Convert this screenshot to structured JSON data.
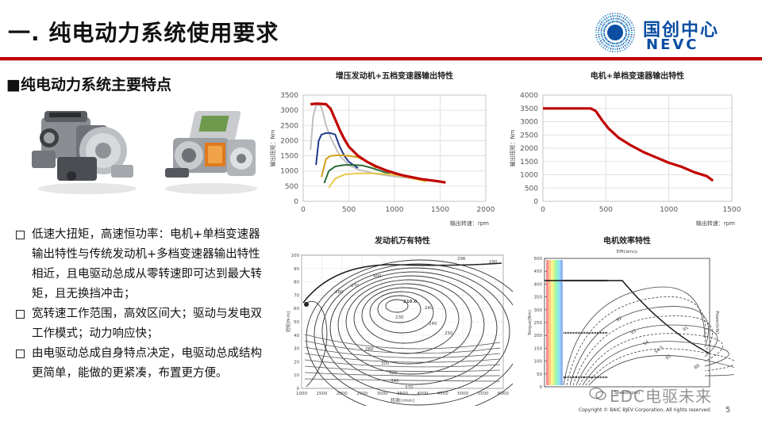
{
  "slide": {
    "title": "一. 纯电动力系统使用要求",
    "subheading": "■纯电动力系统主要特点",
    "page_number": "5",
    "copyright": "Copyright © BAIC BJEV Corporation, All rights reserved.",
    "watermark": "EDC电驱未来"
  },
  "logo": {
    "cn": "国创中心",
    "en": "NEVC",
    "color": "#0b4ea2"
  },
  "bullets": [
    "低速大扭矩，高速恒功率：电机+单档变速器输出特性与传统发动机+多档变速器输出特性相近，且电驱动总成从零转速即可达到最大转矩，且无换挡冲击；",
    "宽转速工作范围，高效区间大；驱动与发电双工作模式；动力响应快；",
    "由电驱动总成自身特点决定，电驱动总成结构更简单，能做的更紧凑，布置更方便。"
  ],
  "images": {
    "engine_left": "engine-with-multi-speed-transmission",
    "engine_right": "electric-drive-assembly"
  },
  "chart_data": [
    {
      "type": "line",
      "title": "增压发动机+五档变速器输出特性",
      "xlabel": "输出转速：rpm",
      "ylabel": "输出扭矩：Nm",
      "xlim": [
        0,
        2000
      ],
      "ylim": [
        0,
        3500
      ],
      "x_ticks": [
        "0",
        "500",
        "1000",
        "1500",
        "2000"
      ],
      "y_ticks": [
        "0",
        "500",
        "1000",
        "1500",
        "2000",
        "2500",
        "3000",
        "3500"
      ],
      "grid": true,
      "series": [
        {
          "color": "#bfbfbf",
          "x": [
            80,
            110,
            140,
            170,
            200,
            250,
            300,
            350,
            400,
            500,
            600,
            800,
            1000,
            1200,
            1400,
            1530
          ],
          "y": [
            1700,
            2800,
            3150,
            3200,
            3100,
            2500,
            2100,
            1800,
            1500,
            1200,
            1050,
            900,
            820,
            750,
            680,
            620
          ]
        },
        {
          "color": "#1f3a8a",
          "x": [
            140,
            170,
            200,
            250,
            300,
            350,
            400,
            450,
            500,
            600
          ],
          "y": [
            1200,
            2000,
            2200,
            2250,
            2250,
            2200,
            1800,
            1500,
            1300,
            1100
          ]
        },
        {
          "color": "#d4a017",
          "x": [
            200,
            250,
            300,
            400,
            500,
            600,
            700,
            800
          ],
          "y": [
            800,
            1400,
            1500,
            1520,
            1500,
            1450,
            1300,
            1100
          ]
        },
        {
          "color": "#2e6b3a",
          "x": [
            230,
            280,
            350,
            450,
            550,
            650,
            750,
            850,
            950
          ],
          "y": [
            600,
            1000,
            1150,
            1200,
            1200,
            1180,
            1100,
            1000,
            900
          ]
        },
        {
          "color": "#e8c84a",
          "x": [
            280,
            350,
            450,
            600,
            750,
            900,
            1050,
            1200,
            1350
          ],
          "y": [
            450,
            750,
            880,
            920,
            920,
            900,
            850,
            750,
            650
          ]
        },
        {
          "color": "#c00000",
          "x": [
            80,
            150,
            250,
            300,
            350,
            400,
            450,
            500,
            600,
            700,
            800,
            900,
            1000,
            1100,
            1200,
            1300,
            1400,
            1500,
            1560
          ],
          "y": [
            3200,
            3220,
            3200,
            3050,
            2700,
            2350,
            2050,
            1800,
            1500,
            1300,
            1150,
            1030,
            930,
            850,
            790,
            730,
            690,
            650,
            620
          ]
        }
      ]
    },
    {
      "type": "line",
      "title": "电机+单档变速器输出特性",
      "xlabel": "输出转速：rpm",
      "ylabel": "输出扭矩：Nm",
      "xlim": [
        0,
        1500
      ],
      "ylim": [
        0,
        4000
      ],
      "x_ticks": [
        "0",
        "500",
        "1000",
        "1500"
      ],
      "y_ticks": [
        "0",
        "500",
        "1000",
        "1500",
        "2000",
        "2500",
        "3000",
        "3500",
        "4000"
      ],
      "grid": true,
      "series": [
        {
          "color": "#c00000",
          "x": [
            0,
            100,
            200,
            300,
            380,
            420,
            470,
            520,
            600,
            700,
            800,
            900,
            1000,
            1100,
            1200,
            1300,
            1350
          ],
          "y": [
            3500,
            3500,
            3500,
            3500,
            3500,
            3400,
            3050,
            2750,
            2400,
            2100,
            1850,
            1650,
            1450,
            1300,
            1100,
            950,
            780
          ]
        }
      ]
    },
    {
      "type": "heatmap",
      "title": "发动机万有特性",
      "xlabel": "转速[r/min]",
      "ylabel": "扭矩[N·m]",
      "xlim": [
        1000,
        6000
      ],
      "ylim": [
        0,
        100
      ],
      "x_ticks": [
        "1000",
        "1500",
        "2000",
        "2500",
        "3000",
        "3500",
        "4000",
        "4500",
        "5000",
        "5500",
        "6000"
      ],
      "y_ticks": [
        "0",
        "10",
        "20",
        "30",
        "40",
        "50",
        "60",
        "70",
        "80",
        "90",
        "100"
      ],
      "labels": [
        "210.0",
        "230",
        "240",
        "245",
        "250",
        "260",
        "270",
        "280",
        "290",
        "296",
        "300",
        "320",
        "340",
        "370",
        "400"
      ]
    },
    {
      "type": "heatmap",
      "title": "电机效率特性",
      "subtitle": "Efficiency",
      "xlabel": "Speed(rpm)",
      "ylabel": "Torque(Nm)",
      "y2label": "Power(kW)",
      "ylim": [
        0,
        500
      ],
      "y_ticks": [
        "0",
        "50",
        "100",
        "150",
        "200",
        "250",
        "300",
        "350",
        "400",
        "450",
        "500"
      ],
      "labels": [
        "92",
        "93",
        "94",
        "94.5",
        "95",
        "91",
        "88"
      ]
    }
  ]
}
